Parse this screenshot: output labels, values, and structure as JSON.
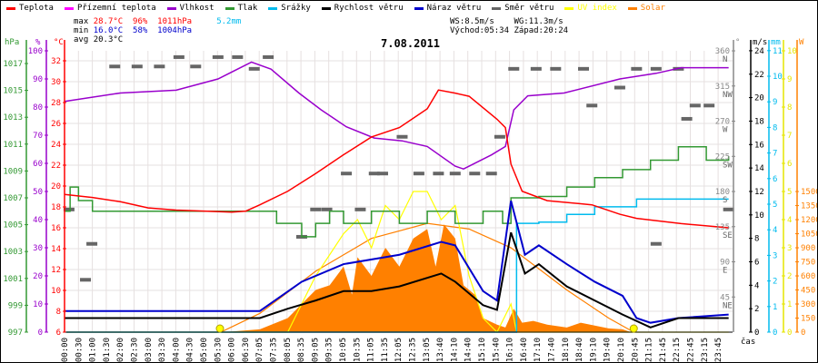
{
  "legend": [
    {
      "label": "Teplota",
      "color": "#ff0000"
    },
    {
      "label": "Přízemní teplota",
      "color": "#ff00ff"
    },
    {
      "label": "Vlhkost",
      "color": "#9900cc"
    },
    {
      "label": "Tlak",
      "color": "#339933"
    },
    {
      "label": "Srážky",
      "color": "#00bbee"
    },
    {
      "label": "Rychlost větru",
      "color": "#000000"
    },
    {
      "label": "Náraz větru",
      "color": "#0000cc"
    },
    {
      "label": "Směr větru",
      "color": "#666666"
    },
    {
      "label": "UV index",
      "color": "#ffff00"
    },
    {
      "label": "Solar",
      "color": "#ff8000"
    }
  ],
  "stats": {
    "max_label": "max",
    "max_temp": "28.7°C",
    "max_hum": "96%",
    "max_press": "1011hPa",
    "rain": "5.2mm",
    "min_label": "min",
    "min_temp": "16.0°C",
    "min_hum": "58%",
    "min_press": "1004hPa",
    "avg_label": "avg",
    "avg_temp": "20.3°C",
    "ws": "WS:8.5m/s",
    "wg": "WG:11.3m/s",
    "sunrise": "Východ:05:34",
    "sunset": "Západ:20:24"
  },
  "chart_data": {
    "type": "line",
    "title": "7.08.2011",
    "xlabel": "čas",
    "x_unit": "hour",
    "x_tick_labels": [
      "00:00",
      "00:30",
      "01:00",
      "01:30",
      "02:00",
      "02:30",
      "03:00",
      "03:30",
      "04:00",
      "04:30",
      "05:00",
      "05:30",
      "06:00",
      "06:30",
      "07:05",
      "07:35",
      "08:05",
      "08:35",
      "09:05",
      "09:35",
      "10:05",
      "10:35",
      "11:05",
      "11:35",
      "12:05",
      "12:35",
      "13:05",
      "13:40",
      "14:10",
      "14:40",
      "15:10",
      "15:40",
      "16:10",
      "16:40",
      "17:10",
      "17:40",
      "18:10",
      "18:40",
      "19:10",
      "19:40",
      "20:10",
      "20:45",
      "21:15",
      "21:45",
      "22:15",
      "22:45",
      "23:15",
      "23:45"
    ],
    "axes": {
      "pressure": {
        "unit": "hPa",
        "range": [
          997,
          1017
        ],
        "ticks": [
          997,
          999,
          1001,
          1003,
          1005,
          1007,
          1009,
          1011,
          1013,
          1015,
          1017
        ]
      },
      "humidity": {
        "unit": "%",
        "range": [
          0,
          100
        ],
        "ticks": [
          0,
          10,
          20,
          30,
          40,
          50,
          60,
          70,
          80,
          90,
          100
        ]
      },
      "temperature": {
        "unit": "°C",
        "range": [
          6,
          32
        ],
        "ticks": [
          6,
          8,
          10,
          12,
          14,
          16,
          18,
          20,
          22,
          24,
          26,
          28,
          30,
          32
        ]
      },
      "direction": {
        "unit": "°",
        "range": [
          0,
          360
        ],
        "ticks": [
          45,
          90,
          135,
          180,
          225,
          270,
          315,
          360
        ],
        "compass": [
          "NE",
          "E",
          "SE",
          "S",
          "SW",
          "W",
          "NW",
          "N"
        ]
      },
      "wind": {
        "unit": "m/s",
        "range": [
          0,
          24
        ],
        "ticks": [
          0,
          2,
          4,
          6,
          8,
          10,
          12,
          14,
          16,
          18,
          20,
          22,
          24
        ]
      },
      "rain": {
        "unit": "mm",
        "range": [
          0,
          11
        ],
        "ticks": [
          0,
          1,
          2,
          3,
          4,
          5,
          6,
          7,
          8,
          9,
          10,
          11
        ]
      },
      "uv": {
        "unit": "",
        "range": [
          0,
          10
        ],
        "ticks": [
          0,
          1,
          2,
          3,
          4,
          5,
          6,
          7,
          8,
          9,
          10
        ]
      },
      "solar": {
        "unit": "W",
        "range": [
          0,
          1500
        ],
        "ticks": [
          0,
          150,
          300,
          450,
          600,
          750,
          900,
          1050,
          1200,
          1350,
          1500
        ]
      }
    },
    "series": {
      "temperature": [
        [
          0,
          19.2
        ],
        [
          1,
          18.9
        ],
        [
          2,
          18.5
        ],
        [
          3,
          17.9
        ],
        [
          4,
          17.7
        ],
        [
          5,
          17.6
        ],
        [
          6,
          17.5
        ],
        [
          6.5,
          17.6
        ],
        [
          7,
          18.2
        ],
        [
          8,
          19.5
        ],
        [
          9,
          21.2
        ],
        [
          10,
          23
        ],
        [
          11,
          24.7
        ],
        [
          12,
          25.6
        ],
        [
          13,
          27.4
        ],
        [
          13.4,
          29.2
        ],
        [
          14,
          28.9
        ],
        [
          14.5,
          28.6
        ],
        [
          15.5,
          26.4
        ],
        [
          15.8,
          25.6
        ],
        [
          16,
          22.1
        ],
        [
          16.4,
          19.5
        ],
        [
          17.3,
          18.6
        ],
        [
          18.9,
          18.2
        ],
        [
          19.9,
          17.3
        ],
        [
          20.5,
          16.9
        ],
        [
          22.1,
          16.4
        ],
        [
          23.8,
          16
        ]
      ],
      "humidity": [
        [
          0,
          82
        ],
        [
          2,
          85
        ],
        [
          4,
          86
        ],
        [
          5.5,
          90
        ],
        [
          6.7,
          96
        ],
        [
          7.4,
          93.5
        ],
        [
          8.4,
          85
        ],
        [
          9.2,
          79
        ],
        [
          10.1,
          73
        ],
        [
          11.1,
          69
        ],
        [
          12.1,
          68
        ],
        [
          13,
          66
        ],
        [
          14,
          59
        ],
        [
          14.3,
          58
        ],
        [
          15.3,
          63
        ],
        [
          15.8,
          66
        ],
        [
          16.1,
          79
        ],
        [
          16.6,
          84
        ],
        [
          17.9,
          85
        ],
        [
          19.9,
          90
        ],
        [
          21.2,
          92
        ],
        [
          22.1,
          94
        ],
        [
          23.8,
          94
        ]
      ],
      "pressure": [
        [
          0,
          1006
        ],
        [
          0.2,
          1007.8
        ],
        [
          0.5,
          1006.8
        ],
        [
          1,
          1006
        ],
        [
          7,
          1006
        ],
        [
          7.6,
          1005.1
        ],
        [
          8.2,
          1005.1
        ],
        [
          8.5,
          1004.1
        ],
        [
          9,
          1005.1
        ],
        [
          9.5,
          1006
        ],
        [
          10,
          1005.1
        ],
        [
          11,
          1006
        ],
        [
          12,
          1005.1
        ],
        [
          13,
          1006
        ],
        [
          14,
          1005.1
        ],
        [
          15,
          1006
        ],
        [
          15.7,
          1005.1
        ],
        [
          16,
          1007
        ],
        [
          17,
          1007.1
        ],
        [
          18,
          1007.8
        ],
        [
          19,
          1008.5
        ],
        [
          20,
          1009.1
        ],
        [
          21,
          1009.8
        ],
        [
          22,
          1010.8
        ],
        [
          23,
          1009.8
        ],
        [
          23.8,
          1010.1
        ]
      ],
      "wind_speed": [
        [
          0,
          1.2
        ],
        [
          3,
          1.2
        ],
        [
          7,
          1.2
        ],
        [
          8,
          2
        ],
        [
          9,
          2.7
        ],
        [
          10,
          3.5
        ],
        [
          11,
          3.5
        ],
        [
          12,
          3.9
        ],
        [
          13.5,
          5
        ],
        [
          14,
          4.3
        ],
        [
          15,
          2.3
        ],
        [
          15.5,
          1.9
        ],
        [
          16,
          8.5
        ],
        [
          16.5,
          5
        ],
        [
          17,
          5.8
        ],
        [
          18,
          3.9
        ],
        [
          19,
          2.7
        ],
        [
          20,
          1.5
        ],
        [
          21,
          0.4
        ],
        [
          22,
          1.2
        ],
        [
          23.8,
          1.2
        ]
      ],
      "wind_gust": [
        [
          0,
          1.8
        ],
        [
          3,
          1.8
        ],
        [
          7,
          1.8
        ],
        [
          8.5,
          4.3
        ],
        [
          10,
          5.8
        ],
        [
          12,
          6.6
        ],
        [
          13.5,
          7.7
        ],
        [
          14,
          7.4
        ],
        [
          15,
          3.5
        ],
        [
          15.5,
          2.7
        ],
        [
          16,
          11.2
        ],
        [
          16.5,
          6.6
        ],
        [
          17,
          7.4
        ],
        [
          18,
          5.8
        ],
        [
          19,
          4.3
        ],
        [
          20,
          3.1
        ],
        [
          20.5,
          1.2
        ],
        [
          21,
          0.8
        ],
        [
          22,
          1.2
        ],
        [
          23.8,
          1.5
        ]
      ],
      "rain": [
        [
          0,
          0
        ],
        [
          15.8,
          0
        ],
        [
          16.2,
          4.25
        ],
        [
          17,
          4.3
        ],
        [
          18,
          4.6
        ],
        [
          19,
          4.9
        ],
        [
          20.5,
          5.2
        ],
        [
          23.8,
          5.2
        ]
      ],
      "uv": [
        [
          0,
          0
        ],
        [
          8,
          0
        ],
        [
          8.5,
          1
        ],
        [
          9,
          2
        ],
        [
          10,
          3.5
        ],
        [
          10.5,
          4
        ],
        [
          11,
          3
        ],
        [
          11.5,
          4.5
        ],
        [
          12,
          4
        ],
        [
          12.5,
          5
        ],
        [
          13,
          5
        ],
        [
          13.5,
          4
        ],
        [
          14,
          4.5
        ],
        [
          14.5,
          2
        ],
        [
          15,
          0.5
        ],
        [
          15.5,
          0
        ],
        [
          16,
          1
        ],
        [
          16.2,
          0
        ],
        [
          23.8,
          0
        ]
      ],
      "solar": [
        [
          5.7,
          0
        ],
        [
          7,
          30
        ],
        [
          8,
          150
        ],
        [
          8.5,
          300
        ],
        [
          9,
          450
        ],
        [
          9.5,
          500
        ],
        [
          10,
          700
        ],
        [
          10.3,
          400
        ],
        [
          10.5,
          800
        ],
        [
          11,
          600
        ],
        [
          11.5,
          900
        ],
        [
          12,
          700
        ],
        [
          12.5,
          1000
        ],
        [
          13,
          1100
        ],
        [
          13.3,
          700
        ],
        [
          13.6,
          1150
        ],
        [
          14,
          1000
        ],
        [
          14.3,
          500
        ],
        [
          14.7,
          400
        ],
        [
          15,
          150
        ],
        [
          15.5,
          80
        ],
        [
          15.8,
          50
        ],
        [
          16.1,
          250
        ],
        [
          16.4,
          100
        ],
        [
          16.8,
          120
        ],
        [
          17.3,
          80
        ],
        [
          18,
          50
        ],
        [
          18.5,
          100
        ],
        [
          19,
          70
        ],
        [
          19.5,
          40
        ],
        [
          20,
          30
        ],
        [
          20.3,
          0
        ]
      ],
      "solar_max": [
        [
          5.6,
          0
        ],
        [
          7,
          200
        ],
        [
          9,
          650
        ],
        [
          11,
          1000
        ],
        [
          13,
          1160
        ],
        [
          14.5,
          1100
        ],
        [
          16,
          900
        ],
        [
          18,
          450
        ],
        [
          19.5,
          150
        ],
        [
          20.4,
          0
        ]
      ],
      "wind_direction": [
        [
          0.16,
          157
        ],
        [
          0.75,
          67
        ],
        [
          0.98,
          113
        ],
        [
          1.8,
          340
        ],
        [
          2.6,
          340
        ],
        [
          3.4,
          340
        ],
        [
          4.1,
          352
        ],
        [
          4.7,
          340
        ],
        [
          5.5,
          352
        ],
        [
          6.2,
          352
        ],
        [
          6.8,
          337
        ],
        [
          7.3,
          352
        ],
        [
          8.5,
          122
        ],
        [
          9,
          157
        ],
        [
          9.4,
          157
        ],
        [
          10.1,
          203
        ],
        [
          10.6,
          157
        ],
        [
          11.1,
          203
        ],
        [
          11.4,
          203
        ],
        [
          12.1,
          250
        ],
        [
          12.7,
          203
        ],
        [
          13.4,
          203
        ],
        [
          14,
          203
        ],
        [
          14.7,
          203
        ],
        [
          15.3,
          203
        ],
        [
          15.6,
          250
        ],
        [
          16.1,
          337
        ],
        [
          16.9,
          337
        ],
        [
          17.6,
          337
        ],
        [
          18.6,
          337
        ],
        [
          18.9,
          290
        ],
        [
          19.9,
          313
        ],
        [
          20.5,
          337
        ],
        [
          21.2,
          337
        ],
        [
          21.2,
          113
        ],
        [
          22,
          337
        ],
        [
          22.3,
          273
        ],
        [
          22.6,
          290
        ],
        [
          23.1,
          290
        ],
        [
          23.8,
          157
        ]
      ]
    },
    "sunrise_hour": 5.57,
    "sunset_hour": 20.4
  }
}
